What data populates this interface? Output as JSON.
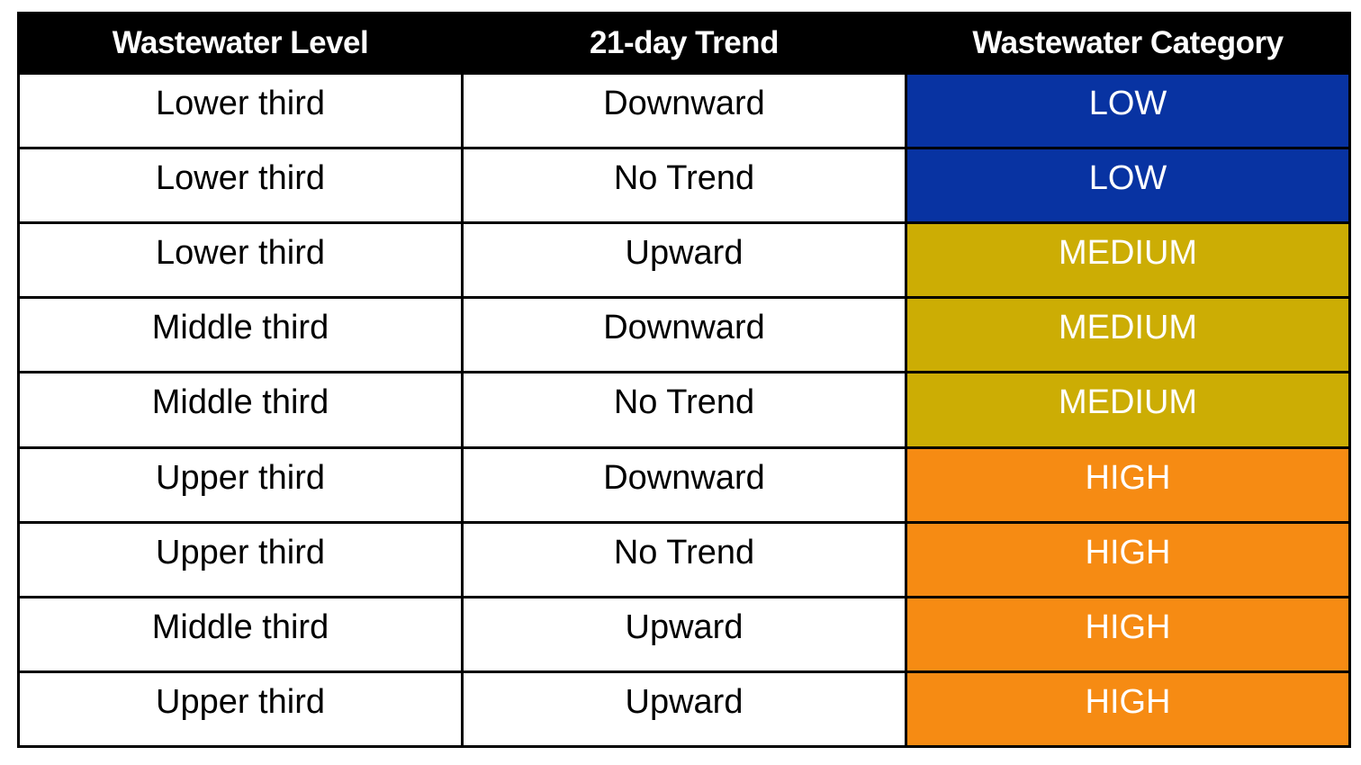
{
  "chart_data": {
    "type": "table",
    "columns": [
      "Wastewater Level",
      "21-day Trend",
      "Wastewater Category"
    ],
    "rows": [
      [
        "Lower third",
        "Downward",
        "LOW"
      ],
      [
        "Lower third",
        "No Trend",
        "LOW"
      ],
      [
        "Lower third",
        "Upward",
        "MEDIUM"
      ],
      [
        "Middle third",
        "Downward",
        "MEDIUM"
      ],
      [
        "Middle third",
        "No Trend",
        "MEDIUM"
      ],
      [
        "Upper third",
        "Downward",
        "HIGH"
      ],
      [
        "Upper third",
        "No Trend",
        "HIGH"
      ],
      [
        "Middle third",
        "Upward",
        "HIGH"
      ],
      [
        "Upper third",
        "Upward",
        "HIGH"
      ]
    ],
    "category_colors": {
      "LOW": "#0833A2",
      "MEDIUM": "#CCAD04",
      "HIGH": "#F68B13"
    },
    "colors": {
      "header_bg": "#000000",
      "header_text": "#FFFFFF",
      "body_bg": "#FFFFFF",
      "body_text": "#000000",
      "category_text": "#FFFFFF",
      "border": "#000000"
    }
  }
}
